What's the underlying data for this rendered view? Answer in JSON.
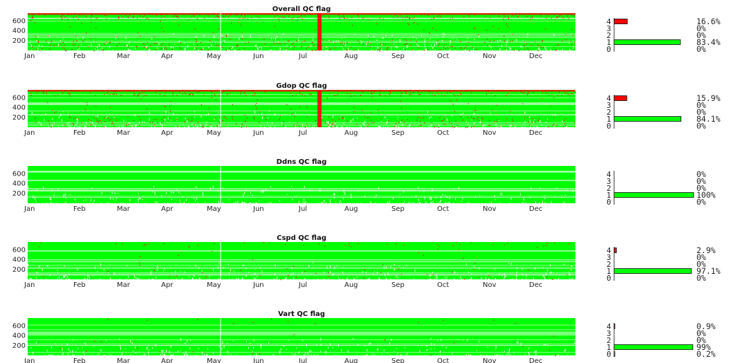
{
  "figure": {
    "x_tick_labels": [
      "Jan",
      "Feb",
      "Mar",
      "Apr",
      "May",
      "Jun",
      "Jul",
      "Aug",
      "Sep",
      "Oct",
      "Nov",
      "Dec"
    ],
    "y_tick_labels": [
      "200",
      "400",
      "600"
    ],
    "flag_levels": [
      "0",
      "1",
      "2",
      "3",
      "4"
    ],
    "colors": {
      "good": "#00ff00",
      "bad": "#ff0000",
      "gap": "#ffffff",
      "bar_edge": "#000000"
    }
  },
  "chart_data": [
    {
      "type": "heatmap",
      "title": "Overall QC flag",
      "x_categories": [
        "Jan",
        "Feb",
        "Mar",
        "Apr",
        "May",
        "Jun",
        "Jul",
        "Aug",
        "Sep",
        "Oct",
        "Nov",
        "Dec"
      ],
      "ylim": [
        0,
        750
      ],
      "y_ticks": [
        200,
        400,
        600
      ],
      "flag_values": [
        1,
        4
      ],
      "flag_colors": {
        "1": "#00ff00",
        "4": "#ff0000"
      },
      "bad_fraction": 0.166,
      "flag_distribution": {
        "type": "bar",
        "orientation": "horizontal",
        "categories": [
          "0",
          "1",
          "2",
          "3",
          "4"
        ],
        "values": [
          0,
          83.4,
          0,
          0,
          16.6
        ],
        "labels": [
          "0%",
          "83.4%",
          "0%",
          "0%",
          "16.6%"
        ]
      }
    },
    {
      "type": "heatmap",
      "title": "Gdop QC flag",
      "x_categories": [
        "Jan",
        "Feb",
        "Mar",
        "Apr",
        "May",
        "Jun",
        "Jul",
        "Aug",
        "Sep",
        "Oct",
        "Nov",
        "Dec"
      ],
      "ylim": [
        0,
        750
      ],
      "y_ticks": [
        200,
        400,
        600
      ],
      "flag_values": [
        1,
        4
      ],
      "flag_colors": {
        "1": "#00ff00",
        "4": "#ff0000"
      },
      "bad_fraction": 0.159,
      "flag_distribution": {
        "type": "bar",
        "orientation": "horizontal",
        "categories": [
          "0",
          "1",
          "2",
          "3",
          "4"
        ],
        "values": [
          0,
          84.1,
          0,
          0,
          15.9
        ],
        "labels": [
          "0%",
          "84.1%",
          "0%",
          "0%",
          "15.9%"
        ]
      }
    },
    {
      "type": "heatmap",
      "title": "Ddns QC flag",
      "x_categories": [
        "Jan",
        "Feb",
        "Mar",
        "Apr",
        "May",
        "Jun",
        "Jul",
        "Aug",
        "Sep",
        "Oct",
        "Nov",
        "Dec"
      ],
      "ylim": [
        0,
        750
      ],
      "y_ticks": [
        200,
        400,
        600
      ],
      "flag_values": [
        1,
        4
      ],
      "flag_colors": {
        "1": "#00ff00",
        "4": "#ff0000"
      },
      "bad_fraction": 0.0,
      "flag_distribution": {
        "type": "bar",
        "orientation": "horizontal",
        "categories": [
          "0",
          "1",
          "2",
          "3",
          "4"
        ],
        "values": [
          0,
          100,
          0,
          0,
          0
        ],
        "labels": [
          "0%",
          "100%",
          "0%",
          "0%",
          "0%"
        ]
      }
    },
    {
      "type": "heatmap",
      "title": "Cspd QC flag",
      "x_categories": [
        "Jan",
        "Feb",
        "Mar",
        "Apr",
        "May",
        "Jun",
        "Jul",
        "Aug",
        "Sep",
        "Oct",
        "Nov",
        "Dec"
      ],
      "ylim": [
        0,
        750
      ],
      "y_ticks": [
        200,
        400,
        600
      ],
      "flag_values": [
        1,
        4
      ],
      "flag_colors": {
        "1": "#00ff00",
        "4": "#ff0000"
      },
      "bad_fraction": 0.029,
      "flag_distribution": {
        "type": "bar",
        "orientation": "horizontal",
        "categories": [
          "0",
          "1",
          "2",
          "3",
          "4"
        ],
        "values": [
          0,
          97.1,
          0,
          0,
          2.9
        ],
        "labels": [
          "0%",
          "97.1%",
          "0%",
          "0%",
          "2.9%"
        ]
      }
    },
    {
      "type": "heatmap",
      "title": "Vart QC flag",
      "x_categories": [
        "Jan",
        "Feb",
        "Mar",
        "Apr",
        "May",
        "Jun",
        "Jul",
        "Aug",
        "Sep",
        "Oct",
        "Nov",
        "Dec"
      ],
      "ylim": [
        0,
        750
      ],
      "y_ticks": [
        200,
        400,
        600
      ],
      "flag_values": [
        0,
        1,
        4
      ],
      "flag_colors": {
        "0": "#ffffff",
        "1": "#00ff00",
        "4": "#ff0000"
      },
      "bad_fraction": 0.009,
      "flag_distribution": {
        "type": "bar",
        "orientation": "horizontal",
        "categories": [
          "0",
          "1",
          "2",
          "3",
          "4"
        ],
        "values": [
          0.2,
          99,
          0,
          0,
          0.9
        ],
        "labels": [
          "0.2%",
          "99%",
          "0%",
          "0%",
          "0.9%"
        ]
      }
    }
  ]
}
